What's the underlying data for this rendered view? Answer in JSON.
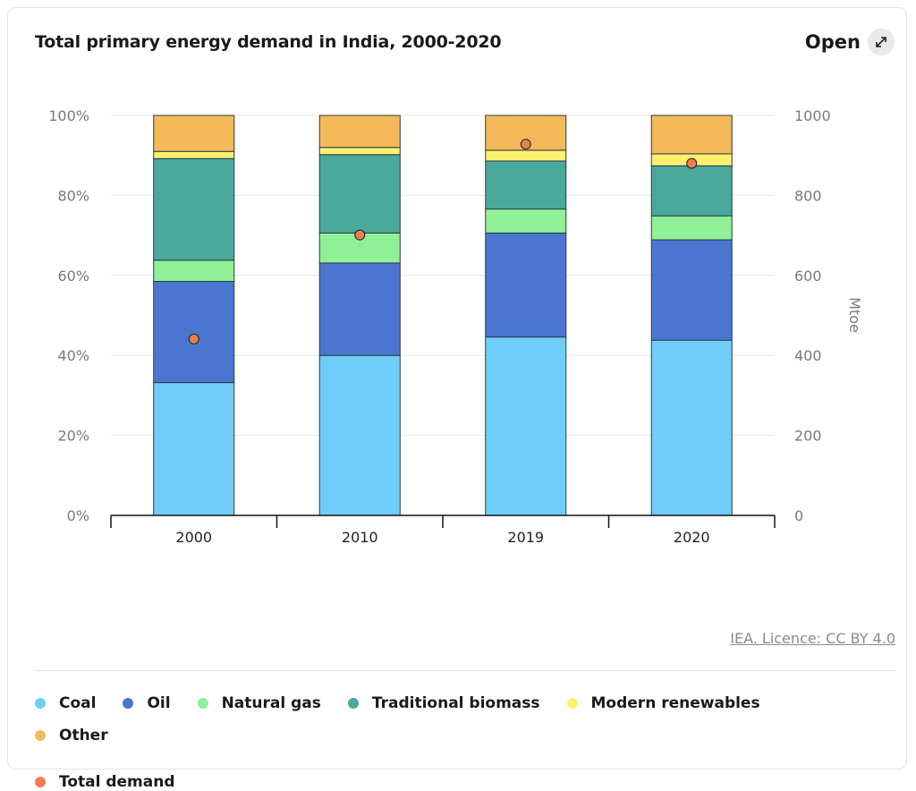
{
  "header": {
    "title": "Total primary energy demand in India, 2000-2020",
    "open_label": "Open"
  },
  "footer": {
    "licence": "IEA. Licence: CC BY 4.0"
  },
  "chart_data": {
    "type": "bar",
    "stacked": true,
    "title": "Total primary energy demand in India, 2000-2020",
    "categories": [
      "2000",
      "2010",
      "2019",
      "2020"
    ],
    "left_axis": {
      "ticks": [
        "100%",
        "80%",
        "60%",
        "40%",
        "20%",
        "0%"
      ],
      "range": [
        0,
        100
      ],
      "unit": "%"
    },
    "right_axis": {
      "label": "Mtoe",
      "ticks": [
        "1000",
        "800",
        "600",
        "400",
        "200",
        "0"
      ],
      "range": [
        0,
        1000
      ]
    },
    "series": [
      {
        "name": "Coal",
        "color": "#6fcdfa",
        "values": [
          33.2,
          40.0,
          44.6,
          43.8
        ]
      },
      {
        "name": "Oil",
        "color": "#4a76cf",
        "values": [
          25.3,
          23.1,
          26.0,
          25.1
        ]
      },
      {
        "name": "Natural gas",
        "color": "#8ff096",
        "values": [
          5.3,
          7.5,
          6.0,
          6.0
        ]
      },
      {
        "name": "Traditional biomass",
        "color": "#4aa89d",
        "values": [
          25.4,
          19.6,
          12.0,
          12.5
        ]
      },
      {
        "name": "Modern renewables",
        "color": "#fcf06e",
        "values": [
          1.8,
          1.8,
          2.7,
          3.0
        ]
      },
      {
        "name": "Other",
        "color": "#f4b958",
        "values": [
          9.0,
          8.0,
          8.7,
          9.6
        ]
      }
    ],
    "total_demand": {
      "name": "Total demand",
      "color": "#ec7d55",
      "unit": "Mtoe",
      "values": [
        441,
        701,
        928,
        880
      ]
    },
    "legend_position": "bottom",
    "grid": true
  }
}
